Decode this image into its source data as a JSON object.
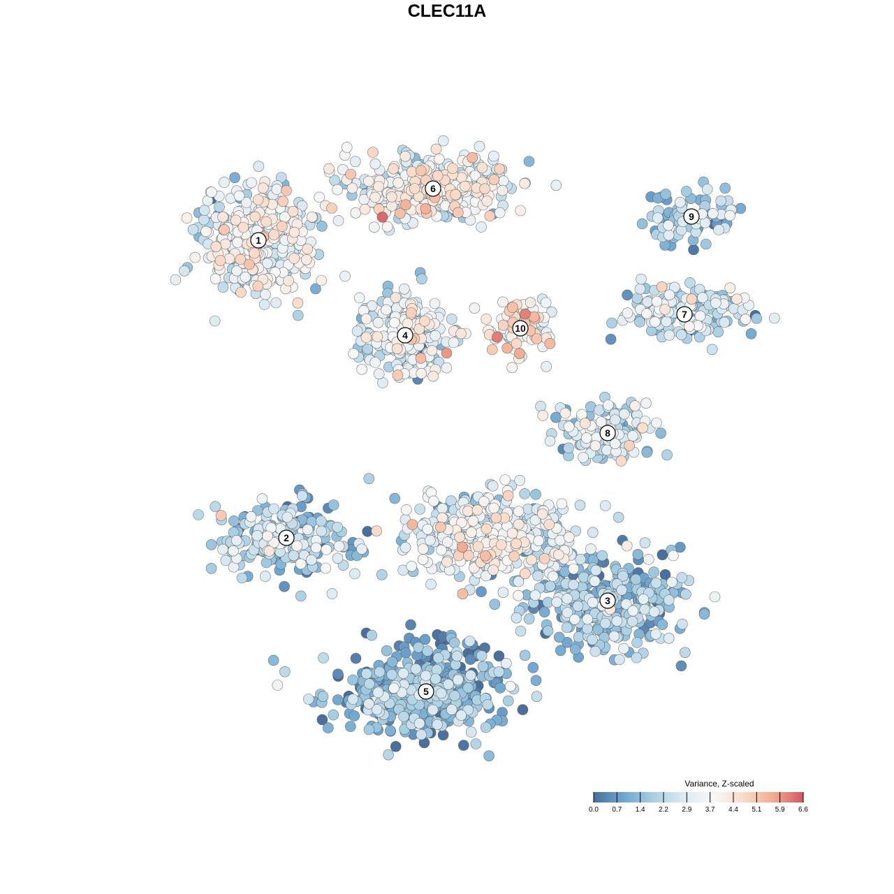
{
  "chart_data": {
    "type": "scatter",
    "title": "CLEC11A",
    "xlabel": "",
    "ylabel": "",
    "grid": false,
    "legend": {
      "title": "Variance, Z-scaled",
      "position": "bottom-right",
      "range": [
        0.0,
        6.6
      ],
      "ticks": [
        "0.0",
        "0.7",
        "1.4",
        "2.2",
        "2.9",
        "3.7",
        "4.4",
        "5.1",
        "5.9",
        "6.6"
      ],
      "colors": [
        "#4a6f9c",
        "#6fa6d0",
        "#a9cfe3",
        "#dceaf3",
        "#f7f7f7",
        "#fadbc9",
        "#f2ac92",
        "#d2575f"
      ]
    },
    "clusters": [
      {
        "label": "1",
        "center": [
          370,
          344
        ],
        "spread": [
          75,
          70
        ],
        "n": 420,
        "mean": 3.0
      },
      {
        "label": "6",
        "center": [
          620,
          270
        ],
        "spread": [
          110,
          45
        ],
        "n": 380,
        "mean": 3.3
      },
      {
        "label": "4",
        "center": [
          580,
          480
        ],
        "spread": [
          55,
          55
        ],
        "n": 230,
        "mean": 3.0
      },
      {
        "label": "10",
        "center": [
          745,
          470
        ],
        "spread": [
          45,
          40
        ],
        "n": 80,
        "mean": 4.0
      },
      {
        "label": "9",
        "center": [
          990,
          310
        ],
        "spread": [
          60,
          30
        ],
        "n": 90,
        "mean": 1.8
      },
      {
        "label": "7",
        "center": [
          980,
          450
        ],
        "spread": [
          95,
          35
        ],
        "n": 150,
        "mean": 2.3
      },
      {
        "label": "8",
        "center": [
          870,
          620
        ],
        "spread": [
          65,
          40
        ],
        "n": 150,
        "mean": 2.4
      },
      {
        "label": "2",
        "center": [
          410,
          770
        ],
        "spread": [
          90,
          50
        ],
        "n": 230,
        "mean": 1.8
      },
      {
        "label": "3",
        "center": [
          870,
          860
        ],
        "spread": [
          105,
          60
        ],
        "n": 340,
        "mean": 1.6
      },
      {
        "label": "5",
        "center": [
          610,
          990
        ],
        "spread": [
          110,
          55
        ],
        "n": 450,
        "mean": 1.1
      },
      {
        "label": "",
        "center": [
          700,
          770
        ],
        "spread": [
          110,
          60
        ],
        "n": 380,
        "mean": 3.0
      }
    ]
  }
}
